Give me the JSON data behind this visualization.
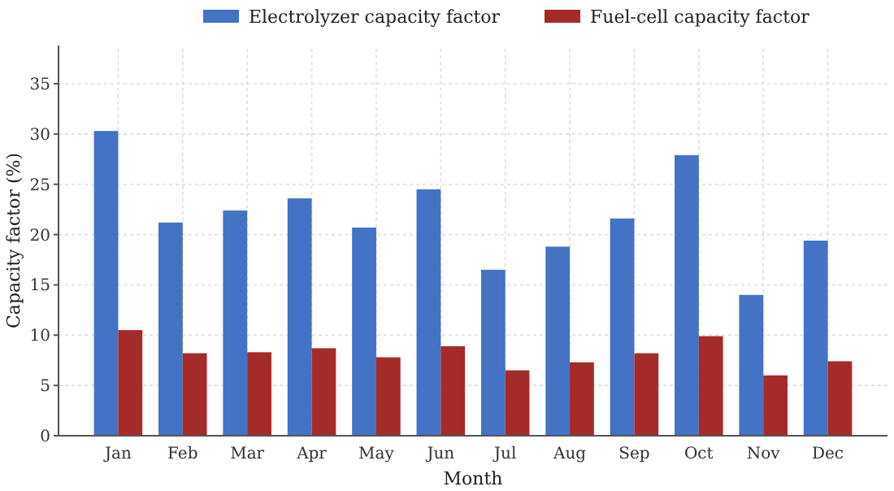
{
  "chart_data": {
    "type": "bar",
    "xlabel": "Month",
    "ylabel": "Capacity factor (%)",
    "categories": [
      "Jan",
      "Feb",
      "Mar",
      "Apr",
      "May",
      "Jun",
      "Jul",
      "Aug",
      "Sep",
      "Oct",
      "Nov",
      "Dec"
    ],
    "series": [
      {
        "name": "Electrolyzer capacity factor",
        "color": "#4472c4",
        "values": [
          30.3,
          21.2,
          22.4,
          23.6,
          20.7,
          24.5,
          16.5,
          18.8,
          21.6,
          27.9,
          14.0,
          19.4
        ]
      },
      {
        "name": "Fuel-cell capacity factor",
        "color": "#a52a2a",
        "values": [
          10.5,
          8.2,
          8.3,
          8.7,
          7.8,
          8.9,
          6.5,
          7.3,
          8.2,
          9.9,
          6.0,
          7.4
        ]
      }
    ],
    "ylim": [
      0,
      38.8
    ],
    "yticks": [
      0,
      5,
      10,
      15,
      20,
      25,
      30,
      35
    ],
    "grid": true,
    "legend": "top"
  }
}
